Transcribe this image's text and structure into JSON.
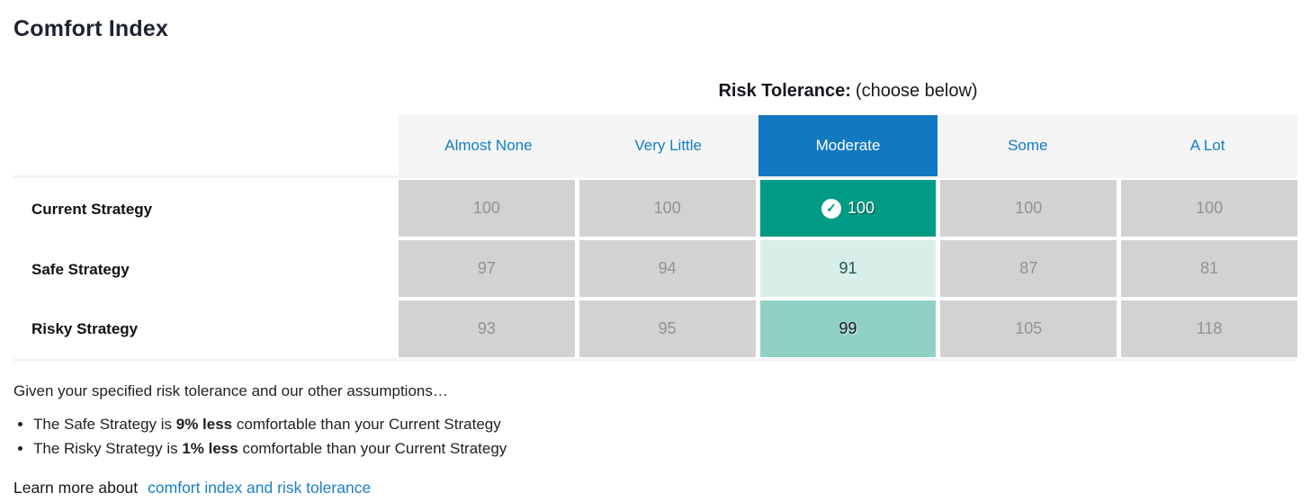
{
  "title": "Comfort Index",
  "risk_tolerance_header": {
    "label": "Risk Tolerance:",
    "hint": "(choose below)"
  },
  "table": {
    "columns": [
      {
        "label": "Almost None",
        "selected": false
      },
      {
        "label": "Very Little",
        "selected": false
      },
      {
        "label": "Moderate",
        "selected": true
      },
      {
        "label": "Some",
        "selected": false
      },
      {
        "label": "A Lot",
        "selected": false
      }
    ],
    "rows": [
      {
        "label": "Current Strategy",
        "values": [
          "100",
          "100",
          "100",
          "100",
          "100"
        ],
        "selected_cell_checked": true
      },
      {
        "label": "Safe Strategy",
        "values": [
          "97",
          "94",
          "91",
          "87",
          "81"
        ]
      },
      {
        "label": "Risky Strategy",
        "values": [
          "93",
          "95",
          "99",
          "105",
          "118"
        ]
      }
    ]
  },
  "check_icon": "✓",
  "summary": {
    "intro": "Given your specified risk tolerance and our other assumptions…",
    "bullets": [
      {
        "pre": "The Safe Strategy is ",
        "bold": "9% less",
        "post": " comfortable than your Current Strategy"
      },
      {
        "pre": "The Risky Strategy is ",
        "bold": "1% less",
        "post": " comfortable than your Current Strategy"
      }
    ]
  },
  "learn_more": {
    "prefix": "Learn more about",
    "link": "comfort index and risk tolerance"
  },
  "colors": {
    "accent_blue_text": "#137dc5",
    "selected_header_bg": "#1179bf",
    "selected_cell_teal": "#009b84",
    "light_teal_cell": "#d9eee9",
    "mid_teal_cell": "#8fd1c5",
    "gray_cell_bg": "#d2d2d2",
    "gray_cell_text": "#909396",
    "header_row_bg": "#f5f5f6"
  }
}
